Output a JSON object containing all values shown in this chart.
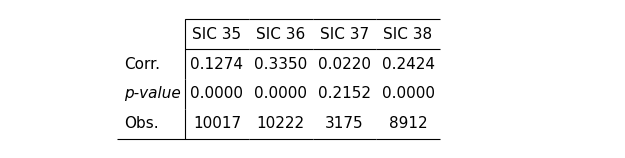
{
  "col_headers": [
    "SIC 35",
    "SIC 36",
    "SIC 37",
    "SIC 38"
  ],
  "row_headers": [
    "Corr.",
    "p-value",
    "Obs."
  ],
  "row_headers_italic": [
    false,
    true,
    false
  ],
  "cells": [
    [
      "0.1274",
      "0.3350",
      "0.0220",
      "0.2424"
    ],
    [
      "0.0000",
      "0.0000",
      "0.2152",
      "0.0000"
    ],
    [
      "10017",
      "10222",
      "3175",
      "8912"
    ]
  ],
  "bg_color": "#ffffff",
  "line_color": "#000000",
  "font_size": 11,
  "header_font_size": 11
}
